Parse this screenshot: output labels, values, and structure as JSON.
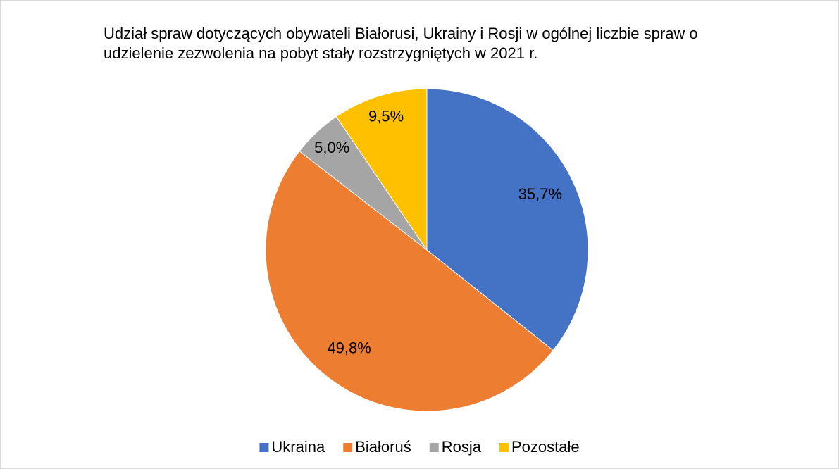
{
  "chart_data": {
    "type": "pie",
    "title": "Udział spraw dotyczących obywateli Białorusi, Ukrainy i Rosji w ogólnej liczbie spraw o udzielenie zezwolenia na pobyt stały rozstrzygniętych w 2021 r.",
    "categories": [
      "Ukraina",
      "Białoruś",
      "Rosja",
      "Pozostałe"
    ],
    "values": [
      35.7,
      49.8,
      5.0,
      9.5
    ],
    "value_labels": [
      "35,7%",
      "49,8%",
      "5,0%",
      "9,5%"
    ],
    "colors": [
      "#4472c4",
      "#ed7d31",
      "#a5a5a5",
      "#ffc000"
    ],
    "legend": "bottom"
  }
}
